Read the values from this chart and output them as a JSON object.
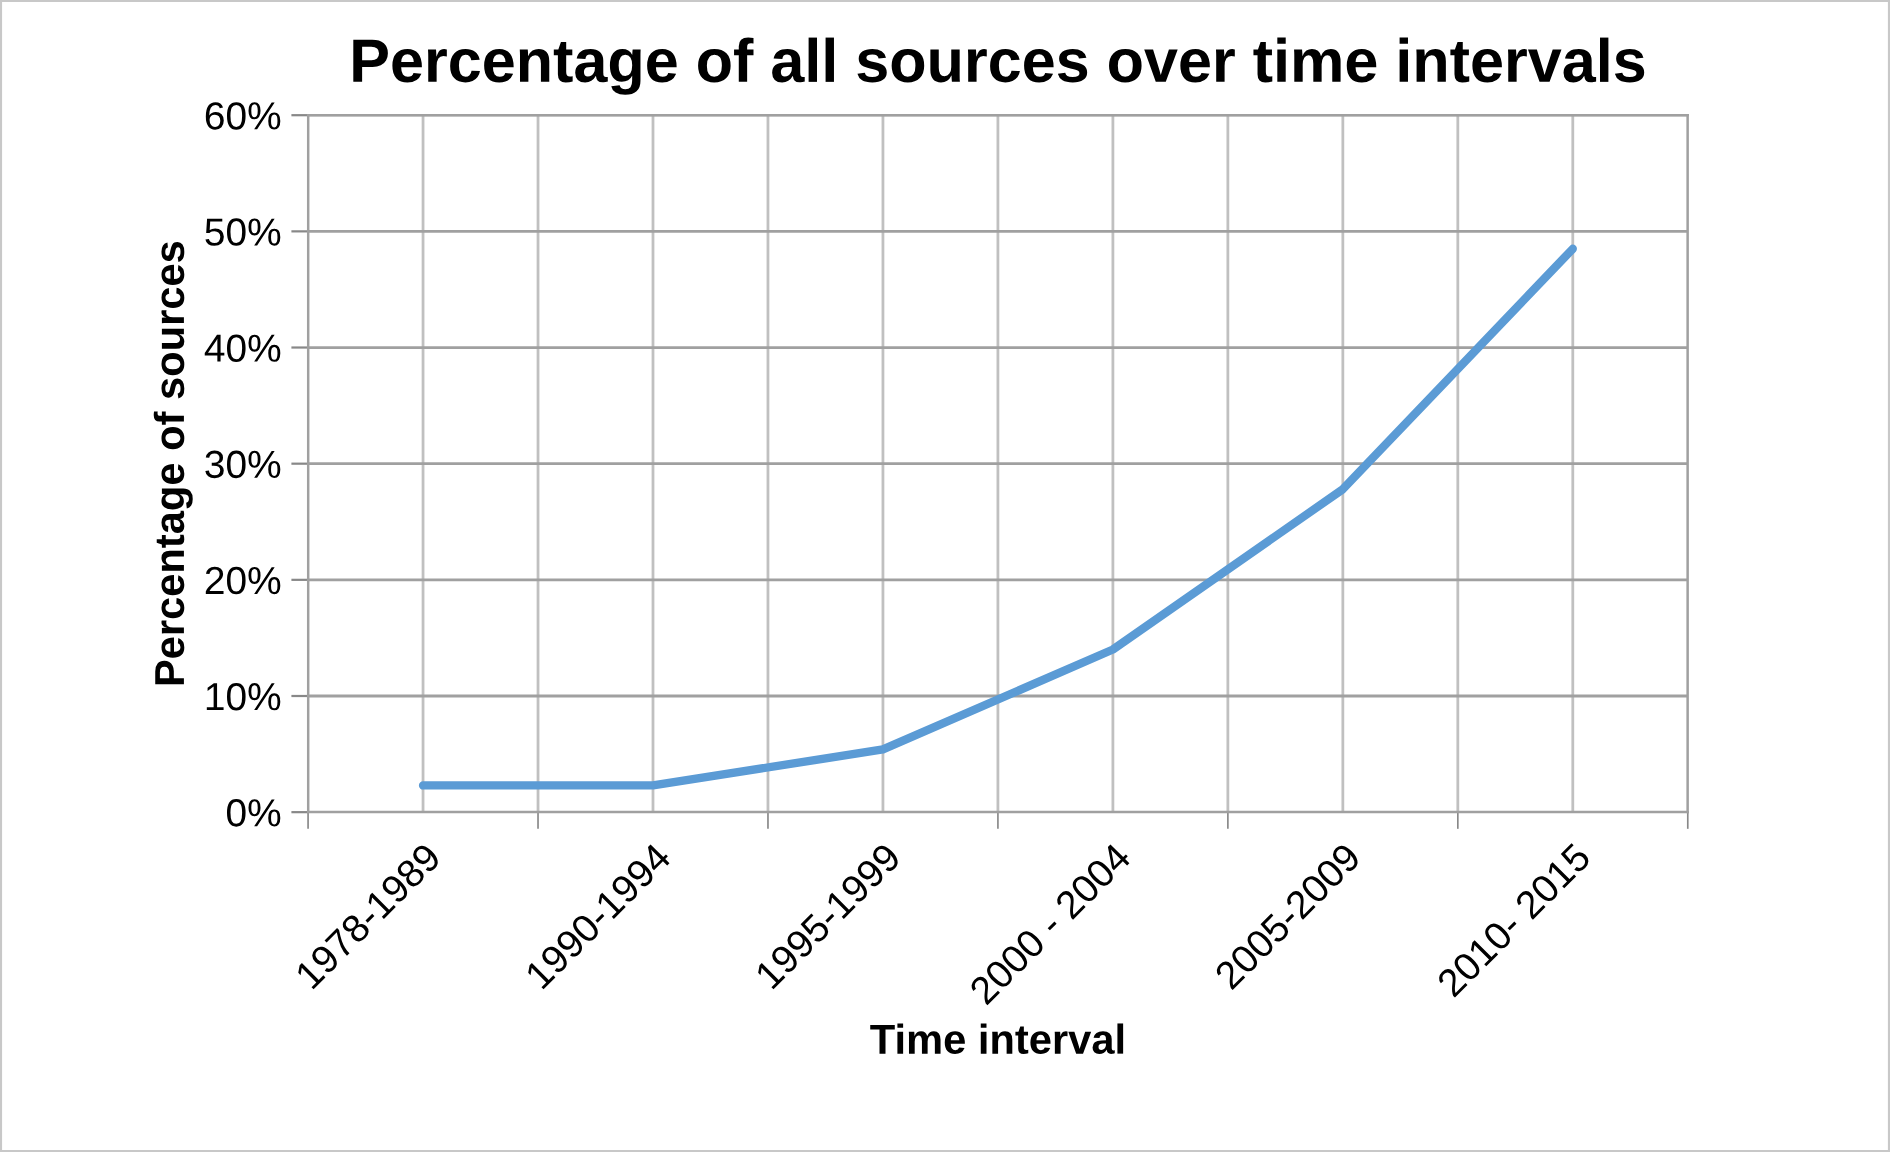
{
  "chart_data": {
    "type": "line",
    "title": "Percentage of all sources over time intervals",
    "xlabel": "Time interval",
    "ylabel": "Percentage of sources",
    "categories": [
      "1978-1989",
      "1990-1994",
      "1995-1999",
      "2000 - 2004",
      "2005-2009",
      "2010- 2015"
    ],
    "series": [
      {
        "color": "#5b9bd5",
        "values": [
          0.023,
          0.023,
          0.054,
          0.14,
          0.278,
          0.485
        ]
      }
    ],
    "ylim": [
      0,
      0.6
    ],
    "yticks": [
      {
        "value": 0,
        "label": "0%"
      },
      {
        "value": 0.1,
        "label": "10%"
      },
      {
        "value": 0.2,
        "label": "20%"
      },
      {
        "value": 0.3,
        "label": "30%"
      },
      {
        "value": 0.4,
        "label": "40%"
      },
      {
        "value": 0.5,
        "label": "50%"
      },
      {
        "value": 0.6,
        "label": "60%"
      }
    ],
    "grid": true,
    "marker": "none",
    "line_style": "solid"
  }
}
